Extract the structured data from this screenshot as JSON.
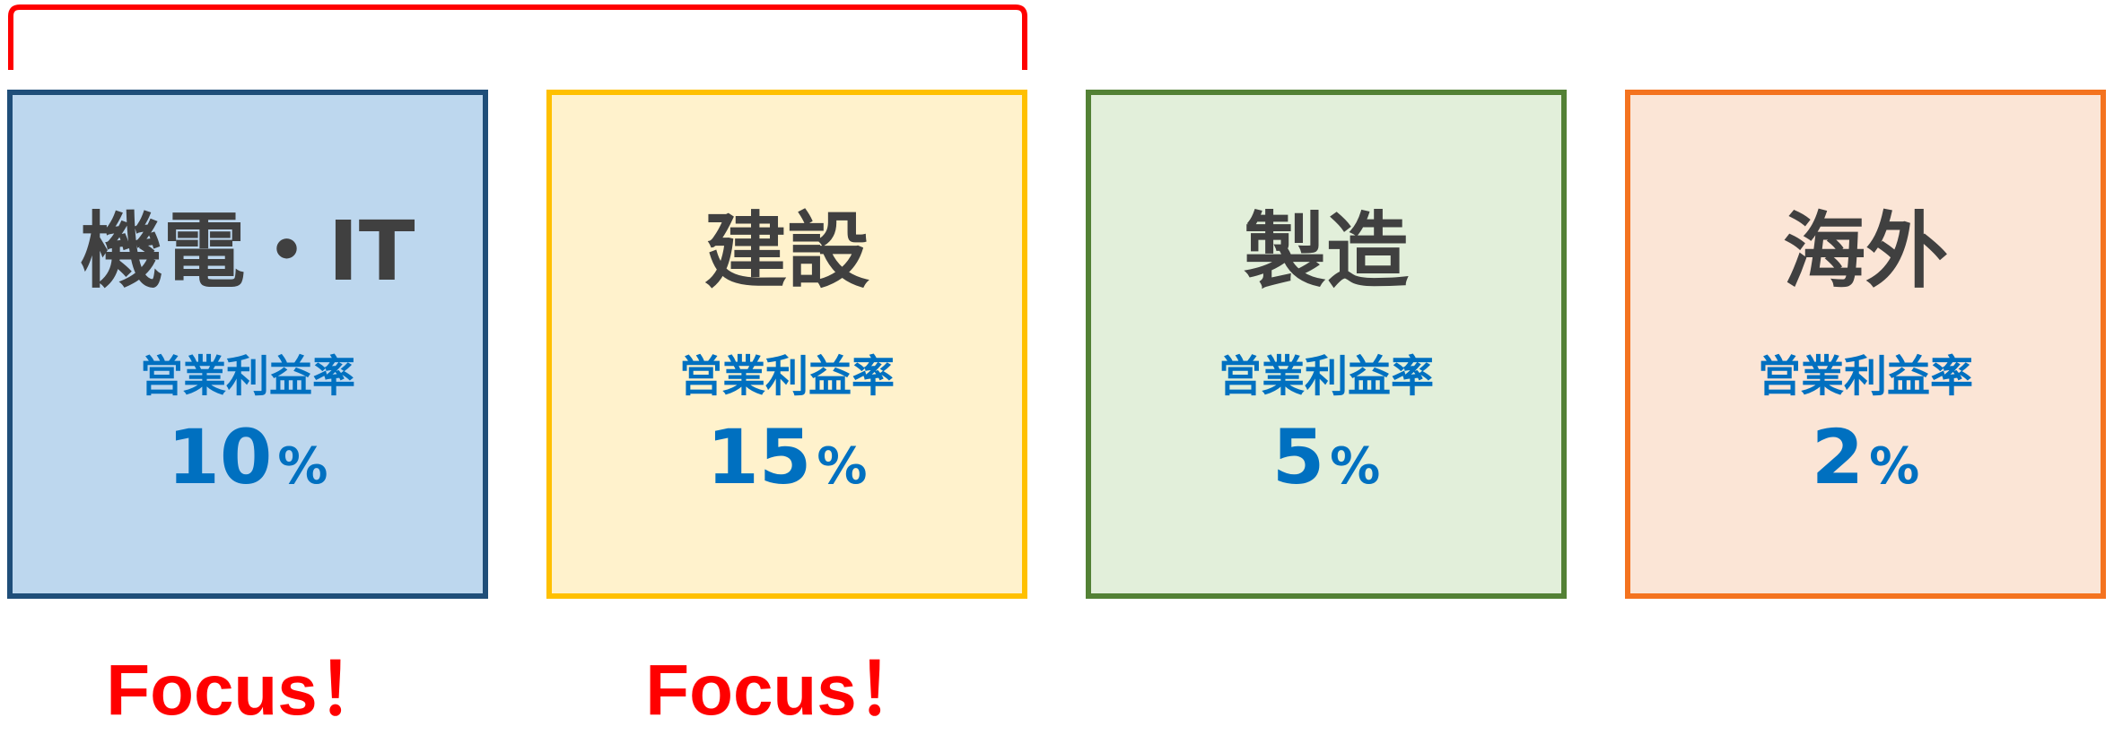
{
  "segments": [
    {
      "name": "機電・IT",
      "label": "営業利益率",
      "value": "10",
      "unit": "%",
      "focus": "Focus！"
    },
    {
      "name": "建設",
      "label": "営業利益率",
      "value": "15",
      "unit": "%",
      "focus": "Focus！"
    },
    {
      "name": "製造",
      "label": "営業利益率",
      "value": "5",
      "unit": "%"
    },
    {
      "name": "海外",
      "label": "営業利益率",
      "value": "2",
      "unit": "%"
    }
  ]
}
